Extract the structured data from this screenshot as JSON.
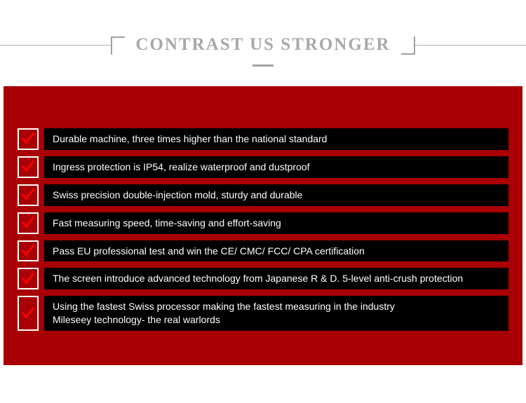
{
  "header": {
    "title": "CONTRAST US STRONGER",
    "title_color": "#a8a8a8",
    "bracket_color": "#a0a0a0",
    "underline_color": "#a0a0a0"
  },
  "panel": {
    "background": "#a80005",
    "row_background": "#000000",
    "text_color": "#ffffff",
    "checkbox_border": "#ffffff",
    "check_color": "#ff0000"
  },
  "features": [
    {
      "text": "Durable machine, three times higher than the national standard"
    },
    {
      "text": "Ingress protection is IP54, realize waterproof and dustproof"
    },
    {
      "text": "Swiss precision double-injection mold, sturdy and durable"
    },
    {
      "text": "Fast measuring speed, time-saving and effort-saving"
    },
    {
      "text": "Pass EU professional test and win the CE/ CMC/ FCC/ CPA certification"
    },
    {
      "text": "The screen introduce advanced technology from Japanese R & D. 5-level anti-crush protection"
    },
    {
      "text": "Using the fastest Swiss processor making the fastest measuring in the industry\nMileseey technology- the real warlords"
    }
  ]
}
